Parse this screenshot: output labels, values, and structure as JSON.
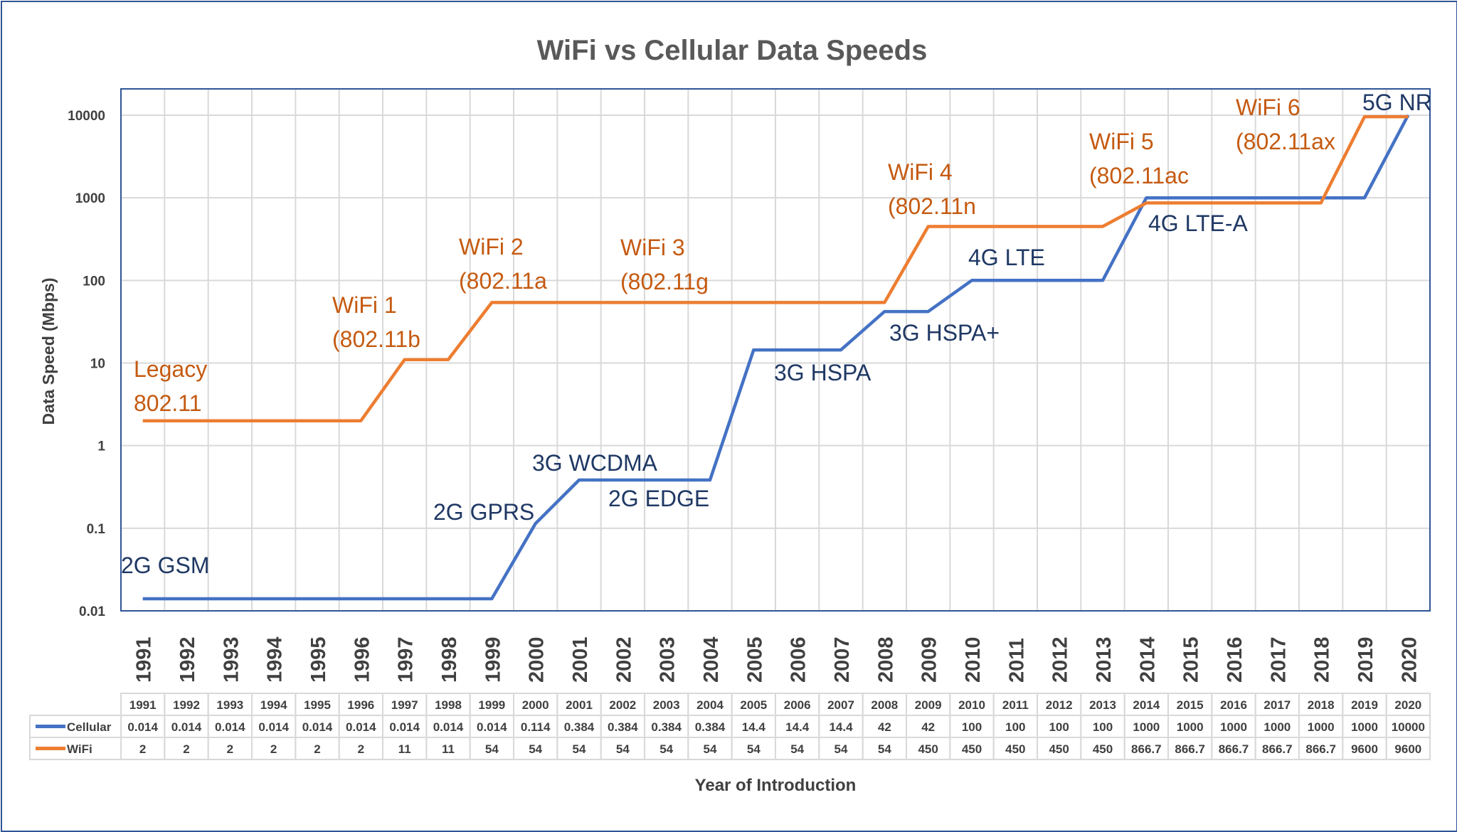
{
  "chart_data": {
    "type": "line",
    "title": "WiFi vs Cellular Data Speeds",
    "xlabel": "Year of Introduction",
    "ylabel": "Data Speed (Mbps)",
    "y_scale": "log",
    "ylim": [
      0.01,
      10000
    ],
    "y_ticks": [
      "0.01",
      "0.1",
      "1",
      "10",
      "100",
      "1000",
      "10000"
    ],
    "grid": true,
    "legend": "data table below chart",
    "categories": [
      "1991",
      "1992",
      "1993",
      "1994",
      "1995",
      "1996",
      "1997",
      "1998",
      "1999",
      "2000",
      "2001",
      "2002",
      "2003",
      "2004",
      "2005",
      "2006",
      "2007",
      "2008",
      "2009",
      "2010",
      "2011",
      "2012",
      "2013",
      "2014",
      "2015",
      "2016",
      "2017",
      "2018",
      "2019",
      "2020"
    ],
    "series": [
      {
        "name": "Cellular",
        "color": "#4472C4",
        "values": [
          0.014,
          0.014,
          0.014,
          0.014,
          0.014,
          0.014,
          0.014,
          0.014,
          0.014,
          0.114,
          0.384,
          0.384,
          0.384,
          0.384,
          14.4,
          14.4,
          14.4,
          42,
          42,
          100,
          100,
          100,
          100,
          1000,
          1000,
          1000,
          1000,
          1000,
          1000,
          10000
        ],
        "labels": [
          "0.014",
          "0.014",
          "0.014",
          "0.014",
          "0.014",
          "0.014",
          "0.014",
          "0.014",
          "0.014",
          "0.114",
          "0.384",
          "0.384",
          "0.384",
          "0.384",
          "14.4",
          "14.4",
          "14.4",
          "42",
          "42",
          "100",
          "100",
          "100",
          "100",
          "1000",
          "1000",
          "1000",
          "1000",
          "1000",
          "1000",
          "10000"
        ]
      },
      {
        "name": "WiFi",
        "color": "#ED7D31",
        "values": [
          2,
          2,
          2,
          2,
          2,
          2,
          11,
          11,
          54,
          54,
          54,
          54,
          54,
          54,
          54,
          54,
          54,
          54,
          450,
          450,
          450,
          450,
          450,
          866.7,
          866.7,
          866.7,
          866.7,
          866.7,
          9600,
          9600
        ],
        "labels": [
          "2",
          "2",
          "2",
          "2",
          "2",
          "2",
          "11",
          "11",
          "54",
          "54",
          "54",
          "54",
          "54",
          "54",
          "54",
          "54",
          "54",
          "54",
          "450",
          "450",
          "450",
          "450",
          "450",
          "866.7",
          "866.7",
          "866.7",
          "866.7",
          "866.7",
          "9600",
          "9600"
        ]
      }
    ],
    "annotations": [
      {
        "series": "WiFi",
        "lines": [
          "Legacy",
          "802.11"
        ],
        "color": "#C55A11"
      },
      {
        "series": "WiFi",
        "lines": [
          "WiFi 1",
          "(802.11b"
        ],
        "color": "#C55A11"
      },
      {
        "series": "WiFi",
        "lines": [
          "WiFi 2",
          "(802.11a"
        ],
        "color": "#C55A11"
      },
      {
        "series": "WiFi",
        "lines": [
          "WiFi 3",
          "(802.11g"
        ],
        "color": "#C55A11"
      },
      {
        "series": "WiFi",
        "lines": [
          "WiFi 4",
          "(802.11n"
        ],
        "color": "#C55A11"
      },
      {
        "series": "WiFi",
        "lines": [
          "WiFi 5",
          "(802.11ac"
        ],
        "color": "#C55A11"
      },
      {
        "series": "WiFi",
        "lines": [
          "WiFi 6",
          "(802.11ax"
        ],
        "color": "#C55A11"
      },
      {
        "series": "Cellular",
        "lines": [
          "2G GSM"
        ],
        "color": "#1F3864"
      },
      {
        "series": "Cellular",
        "lines": [
          "2G GPRS"
        ],
        "color": "#1F3864"
      },
      {
        "series": "Cellular",
        "lines": [
          "3G WCDMA"
        ],
        "color": "#1F3864"
      },
      {
        "series": "Cellular",
        "lines": [
          "2G EDGE"
        ],
        "color": "#1F3864"
      },
      {
        "series": "Cellular",
        "lines": [
          "3G HSPA"
        ],
        "color": "#1F3864"
      },
      {
        "series": "Cellular",
        "lines": [
          "3G HSPA+"
        ],
        "color": "#1F3864"
      },
      {
        "series": "Cellular",
        "lines": [
          "4G LTE"
        ],
        "color": "#1F3864"
      },
      {
        "series": "Cellular",
        "lines": [
          "4G LTE-A"
        ],
        "color": "#1F3864"
      },
      {
        "series": "Cellular",
        "lines": [
          "5G NR"
        ],
        "color": "#1F3864"
      }
    ]
  }
}
